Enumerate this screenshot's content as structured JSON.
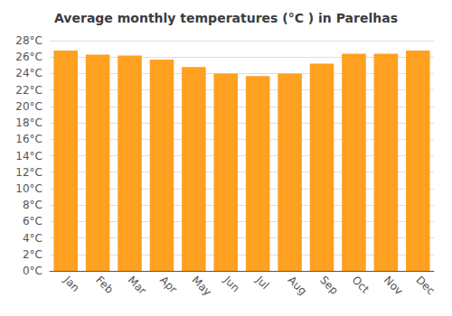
{
  "chart_data": {
    "type": "bar",
    "title": "Average monthly temperatures (°C ) in Parelhas",
    "categories": [
      "Jan",
      "Feb",
      "Mar",
      "Apr",
      "May",
      "Jun",
      "Jul",
      "Aug",
      "Sep",
      "Oct",
      "Nov",
      "Dec"
    ],
    "values": [
      26.8,
      26.3,
      26.2,
      25.7,
      24.8,
      24.0,
      23.7,
      24.0,
      25.2,
      26.4,
      26.4,
      26.8
    ],
    "color": "#FFA020",
    "ylim": [
      0,
      28
    ],
    "yticks": [
      {
        "value": 0,
        "label": "0°C"
      },
      {
        "value": 2,
        "label": "2°C"
      },
      {
        "value": 4,
        "label": "4°C"
      },
      {
        "value": 6,
        "label": "6°C"
      },
      {
        "value": 8,
        "label": "8°C"
      },
      {
        "value": 10,
        "label": "10°C"
      },
      {
        "value": 12,
        "label": "12°C"
      },
      {
        "value": 14,
        "label": "14°C"
      },
      {
        "value": 16,
        "label": "16°C"
      },
      {
        "value": 18,
        "label": "18°C"
      },
      {
        "value": 20,
        "label": "20°C"
      },
      {
        "value": 22,
        "label": "22°C"
      },
      {
        "value": 24,
        "label": "24°C"
      },
      {
        "value": 26,
        "label": "26°C"
      },
      {
        "value": 28,
        "label": "28°C"
      }
    ],
    "grid": true
  }
}
